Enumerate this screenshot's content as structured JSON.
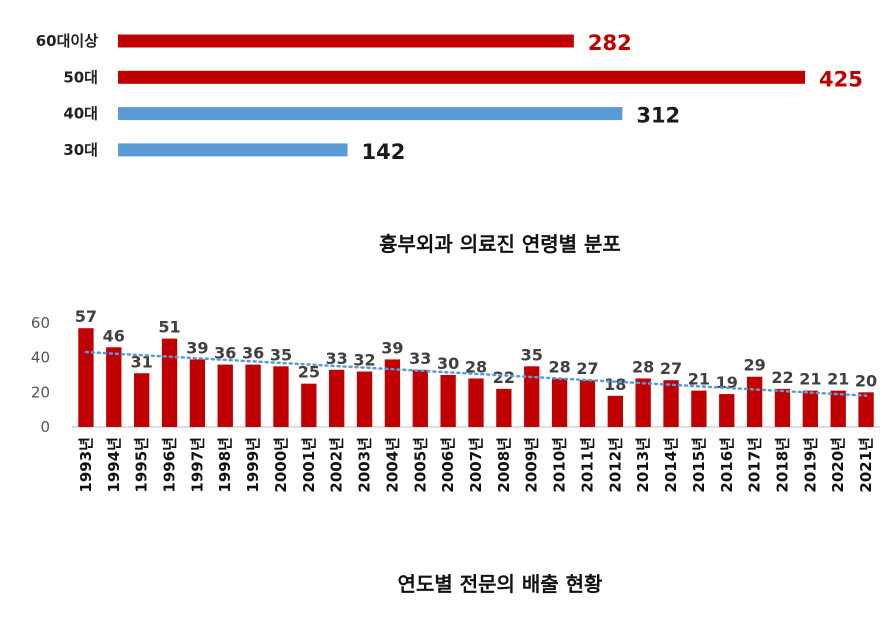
{
  "colors": {
    "red": "#C00000",
    "blue": "#5B9BD5",
    "trend": "#5B9BD5",
    "label_dark": "#1a1a1a",
    "label_gray": "#404040"
  },
  "chart_data": [
    {
      "type": "bar",
      "orientation": "horizontal",
      "title": "흉부외과 의료진 연령별 분포",
      "categories": [
        "60대이상",
        "50대",
        "40대",
        "30대"
      ],
      "values": [
        282,
        425,
        312,
        142
      ],
      "bar_colors": [
        "red",
        "red",
        "blue",
        "blue"
      ],
      "label_colors": [
        "red",
        "red",
        "dark",
        "dark"
      ],
      "xlim": [
        0,
        425
      ]
    },
    {
      "type": "bar",
      "title": "연도별 전문의 배출 현황",
      "categories": [
        "1993년",
        "1994년",
        "1995년",
        "1996년",
        "1997년",
        "1998년",
        "1999년",
        "2000년",
        "2001년",
        "2002년",
        "2003년",
        "2004년",
        "2005년",
        "2006년",
        "2007년",
        "2008년",
        "2009년",
        "2010년",
        "2011년",
        "2012년",
        "2013년",
        "2014년",
        "2015년",
        "2016년",
        "2017년",
        "2018년",
        "2019년",
        "2020년",
        "2021년"
      ],
      "values": [
        57,
        46,
        31,
        51,
        39,
        36,
        36,
        35,
        25,
        33,
        32,
        39,
        33,
        30,
        28,
        22,
        35,
        28,
        27,
        18,
        28,
        27,
        21,
        19,
        29,
        22,
        21,
        21,
        20
      ],
      "yticks": [
        0,
        20,
        40,
        60
      ],
      "ylim": [
        0,
        60
      ],
      "trendline": "linear, dotted",
      "grid": false
    }
  ]
}
